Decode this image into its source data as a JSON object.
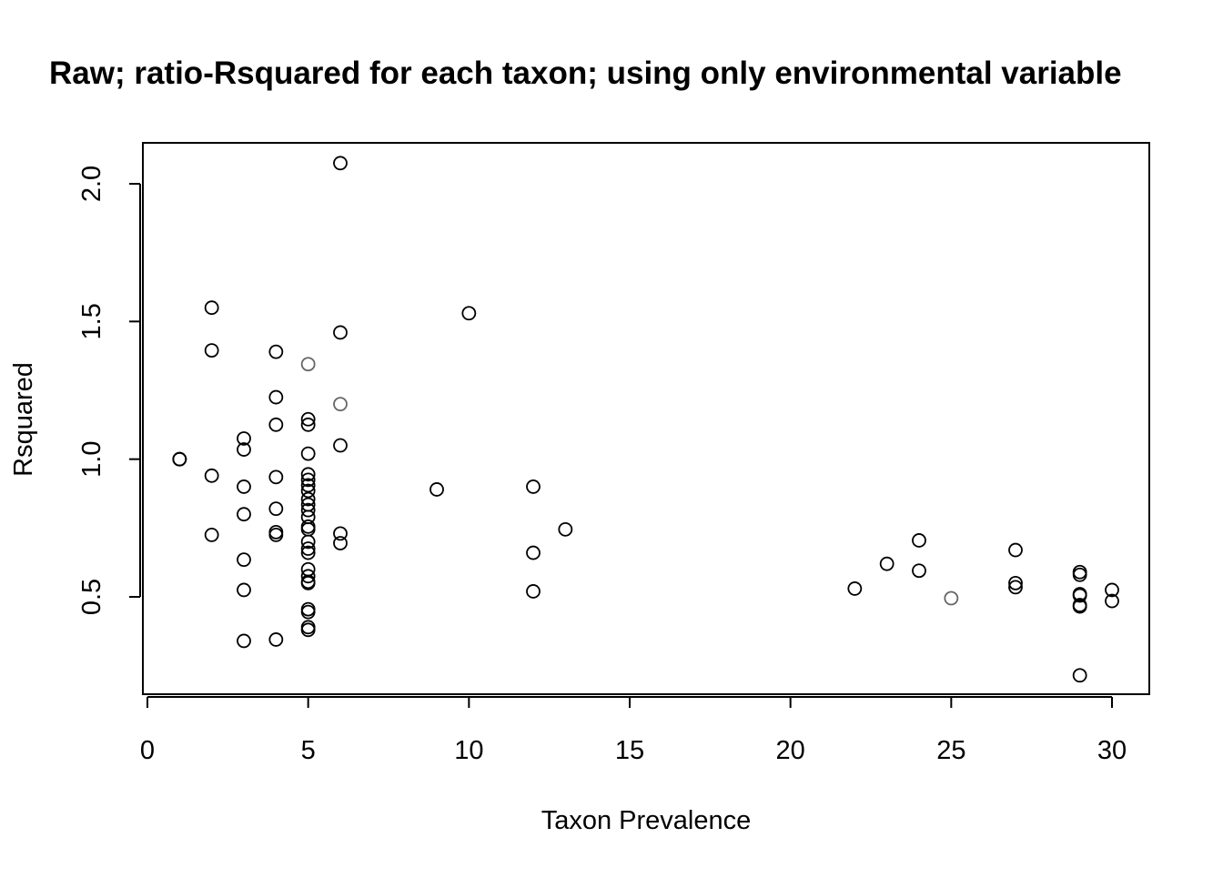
{
  "chart_data": {
    "type": "scatter",
    "title": "Raw; ratio-Rsquared for each taxon; using only environmental variable",
    "xlabel": "Taxon Prevalence",
    "ylabel": "Rsquared",
    "xlim": [
      0,
      31
    ],
    "ylim": [
      0.15,
      2.15
    ],
    "xticks": [
      0,
      5,
      10,
      15,
      20,
      25,
      30
    ],
    "yticks": [
      0.5,
      1.0,
      1.5,
      2.0
    ],
    "xtick_labels": [
      "0",
      "5",
      "10",
      "15",
      "20",
      "25",
      "30"
    ],
    "ytick_labels": [
      "0.5",
      "1.0",
      "1.5",
      "2.0"
    ],
    "grid": false,
    "marker": "open-circle",
    "colors": {
      "marker": "#000000",
      "marker_light": "#666666",
      "axis": "#000000"
    },
    "points": [
      {
        "x": 1,
        "y": 1.0
      },
      {
        "x": 1,
        "y": 1.0
      },
      {
        "x": 1,
        "y": 1.0
      },
      {
        "x": 2,
        "y": 1.55
      },
      {
        "x": 2,
        "y": 1.395
      },
      {
        "x": 2,
        "y": 0.94
      },
      {
        "x": 2,
        "y": 0.725
      },
      {
        "x": 3,
        "y": 1.075
      },
      {
        "x": 3,
        "y": 1.035
      },
      {
        "x": 3,
        "y": 0.9
      },
      {
        "x": 3,
        "y": 0.8
      },
      {
        "x": 3,
        "y": 0.635
      },
      {
        "x": 3,
        "y": 0.525
      },
      {
        "x": 3,
        "y": 0.34
      },
      {
        "x": 4,
        "y": 1.39
      },
      {
        "x": 4,
        "y": 1.225
      },
      {
        "x": 4,
        "y": 1.125
      },
      {
        "x": 4,
        "y": 0.935
      },
      {
        "x": 4,
        "y": 0.82
      },
      {
        "x": 4,
        "y": 0.735
      },
      {
        "x": 4,
        "y": 0.725
      },
      {
        "x": 4,
        "y": 0.345
      },
      {
        "x": 5,
        "y": 1.345,
        "light": true
      },
      {
        "x": 5,
        "y": 1.145
      },
      {
        "x": 5,
        "y": 1.125
      },
      {
        "x": 5,
        "y": 1.02
      },
      {
        "x": 5,
        "y": 0.945
      },
      {
        "x": 5,
        "y": 0.925
      },
      {
        "x": 5,
        "y": 0.905
      },
      {
        "x": 5,
        "y": 0.885
      },
      {
        "x": 5,
        "y": 0.855
      },
      {
        "x": 5,
        "y": 0.835
      },
      {
        "x": 5,
        "y": 0.815
      },
      {
        "x": 5,
        "y": 0.79
      },
      {
        "x": 5,
        "y": 0.755
      },
      {
        "x": 5,
        "y": 0.745
      },
      {
        "x": 5,
        "y": 0.7
      },
      {
        "x": 5,
        "y": 0.675
      },
      {
        "x": 5,
        "y": 0.66
      },
      {
        "x": 5,
        "y": 0.6
      },
      {
        "x": 5,
        "y": 0.575
      },
      {
        "x": 5,
        "y": 0.555
      },
      {
        "x": 5,
        "y": 0.55
      },
      {
        "x": 5,
        "y": 0.455
      },
      {
        "x": 5,
        "y": 0.445
      },
      {
        "x": 5,
        "y": 0.39
      },
      {
        "x": 5,
        "y": 0.38
      },
      {
        "x": 6,
        "y": 2.075
      },
      {
        "x": 6,
        "y": 1.46
      },
      {
        "x": 6,
        "y": 1.2,
        "light": true
      },
      {
        "x": 6,
        "y": 1.05
      },
      {
        "x": 6,
        "y": 0.73
      },
      {
        "x": 6,
        "y": 0.695
      },
      {
        "x": 9,
        "y": 0.89
      },
      {
        "x": 10,
        "y": 1.53
      },
      {
        "x": 12,
        "y": 0.9
      },
      {
        "x": 12,
        "y": 0.66
      },
      {
        "x": 12,
        "y": 0.52
      },
      {
        "x": 13,
        "y": 0.745
      },
      {
        "x": 22,
        "y": 0.53
      },
      {
        "x": 23,
        "y": 0.62
      },
      {
        "x": 24,
        "y": 0.705
      },
      {
        "x": 24,
        "y": 0.595
      },
      {
        "x": 25,
        "y": 0.495,
        "light": true
      },
      {
        "x": 27,
        "y": 0.67
      },
      {
        "x": 27,
        "y": 0.55
      },
      {
        "x": 27,
        "y": 0.535
      },
      {
        "x": 29,
        "y": 0.59
      },
      {
        "x": 29,
        "y": 0.58
      },
      {
        "x": 29,
        "y": 0.51
      },
      {
        "x": 29,
        "y": 0.505
      },
      {
        "x": 29,
        "y": 0.47
      },
      {
        "x": 29,
        "y": 0.465
      },
      {
        "x": 29,
        "y": 0.215
      },
      {
        "x": 30,
        "y": 0.525
      },
      {
        "x": 30,
        "y": 0.485
      }
    ]
  }
}
